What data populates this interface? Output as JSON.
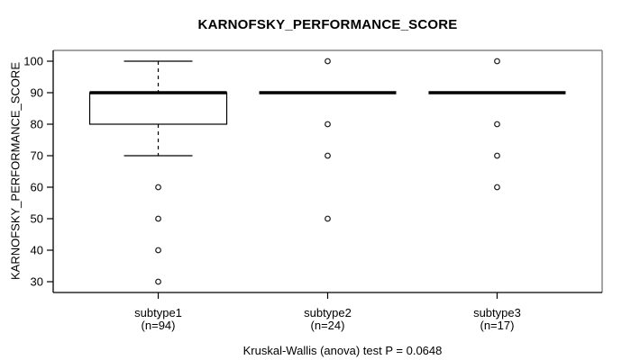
{
  "chart_data": {
    "type": "boxplot",
    "title": "KARNOFSKY_PERFORMANCE_SCORE",
    "ylabel": "KARNOFSKY_PERFORMANCE_SCORE",
    "xlabel": "",
    "footer": "Kruskal-Wallis (anova) test P = 0.0648",
    "ylim": [
      30,
      100
    ],
    "yticks": [
      30,
      40,
      50,
      60,
      70,
      80,
      90,
      100
    ],
    "grid": false,
    "legend": null,
    "colors": {
      "background": "#ffffff",
      "line": "#000000",
      "box_fill": "#ffffff",
      "frame_dark": "#000000",
      "frame_shadow": "#858585"
    },
    "groups": [
      {
        "label": "subtype1",
        "sublabel": "(n=94)",
        "n": 94,
        "q1": 80,
        "median": 90,
        "q3": 90,
        "whisker_low": 70,
        "whisker_high": 100,
        "outliers": [
          60,
          50,
          40,
          30
        ]
      },
      {
        "label": "subtype2",
        "sublabel": "(n=24)",
        "n": 24,
        "q1": 90,
        "median": 90,
        "q3": 90,
        "whisker_low": 90,
        "whisker_high": 90,
        "outliers": [
          100,
          80,
          70,
          50
        ]
      },
      {
        "label": "subtype3",
        "sublabel": "(n=17)",
        "n": 17,
        "q1": 90,
        "median": 90,
        "q3": 90,
        "whisker_low": 90,
        "whisker_high": 90,
        "outliers": [
          100,
          80,
          70,
          60
        ]
      }
    ]
  }
}
